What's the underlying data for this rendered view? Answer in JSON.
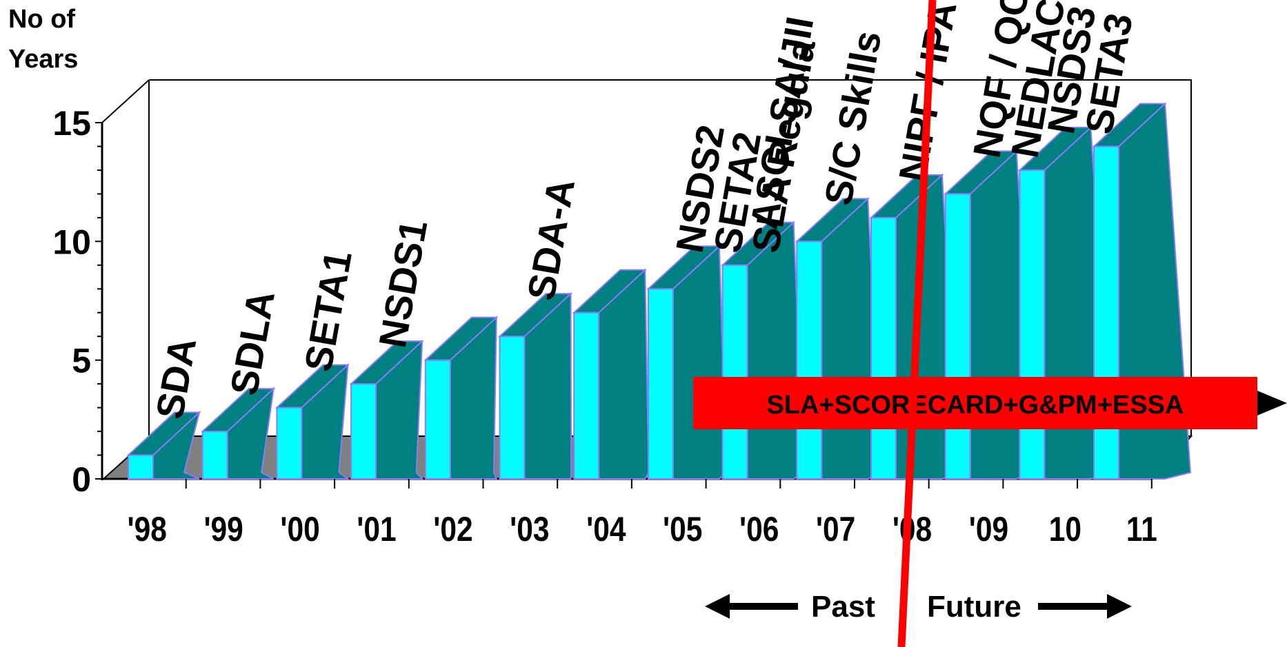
{
  "chart_data": {
    "type": "bar",
    "ylabel": "No of Years",
    "ylim": [
      0,
      15
    ],
    "yticks": [
      "0",
      "5",
      "10",
      "15"
    ],
    "categories": [
      "'98",
      "'99",
      "'00",
      "'01",
      "'02",
      "'03",
      "'04",
      "'05",
      "'06",
      "'07",
      "'08",
      "'09",
      "10",
      "11"
    ],
    "values": [
      1,
      2,
      3,
      4,
      5,
      6,
      7,
      8,
      9,
      10,
      11,
      12,
      13,
      14
    ],
    "annotations": [
      {
        "category": "'98",
        "labels": [
          "SDA"
        ]
      },
      {
        "category": "'99",
        "labels": [
          "SDLA"
        ]
      },
      {
        "category": "'00",
        "labels": [
          "SETA1"
        ]
      },
      {
        "category": "'01",
        "labels": [
          "NSDS1"
        ]
      },
      {
        "category": "'03",
        "labels": [
          "SDA-A"
        ]
      },
      {
        "category": "'05",
        "labels": [
          "NSDS2",
          "SETA2",
          "SLA Regula"
        ]
      },
      {
        "category": "'06",
        "labels": [
          "ASGI-SA/JII"
        ]
      },
      {
        "category": "'07",
        "labels": [
          "S/C Skills"
        ]
      },
      {
        "category": "'08",
        "labels": [
          "NIPF / IPA"
        ]
      },
      {
        "category": "'09",
        "labels": [
          "NQF / QC",
          "NEDLAC"
        ]
      },
      {
        "category": "10",
        "labels": [
          "NSDS3",
          "SETA3"
        ]
      }
    ],
    "banner": "SLA+SCORECARD+G&PM+ESSA",
    "past_label": "Past",
    "future_label": "Future",
    "colors": {
      "bar_front": "#00ffff",
      "bar_side": "#008080",
      "bar_edge": "#8a7aff",
      "floor": "#808080",
      "banner": "#ff0000",
      "divider": "#ff0000"
    },
    "grid": false
  }
}
